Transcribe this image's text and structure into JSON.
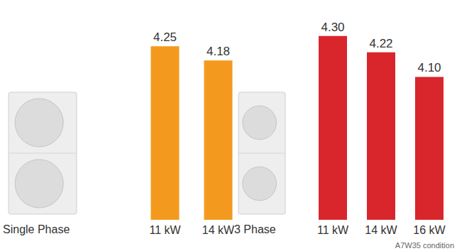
{
  "chart_data": [
    {
      "type": "bar",
      "title": "Single Phase",
      "categories": [
        "11 kW",
        "14 kW"
      ],
      "values": [
        4.25,
        4.18
      ],
      "value_labels": [
        "4.25",
        "4.18"
      ],
      "color": "#f39a1e",
      "ylim": [
        3.4,
        4.4
      ],
      "yticks": [
        3.4,
        4.4
      ],
      "grid": false,
      "data_labels": true,
      "tick_labels": "x"
    },
    {
      "type": "bar",
      "title": "3 Phase",
      "categories": [
        "11 kW",
        "14 kW",
        "16 kW"
      ],
      "values": [
        4.3,
        4.22,
        4.1
      ],
      "value_labels": [
        "4.30",
        "4.22",
        "4.10"
      ],
      "color": "#d9262c",
      "ylim": [
        3.4,
        4.4
      ],
      "yticks": [
        3.4,
        4.4
      ],
      "grid": false,
      "data_labels": true,
      "tick_labels": "x",
      "annotations": [
        "A7W35 condition"
      ]
    }
  ]
}
